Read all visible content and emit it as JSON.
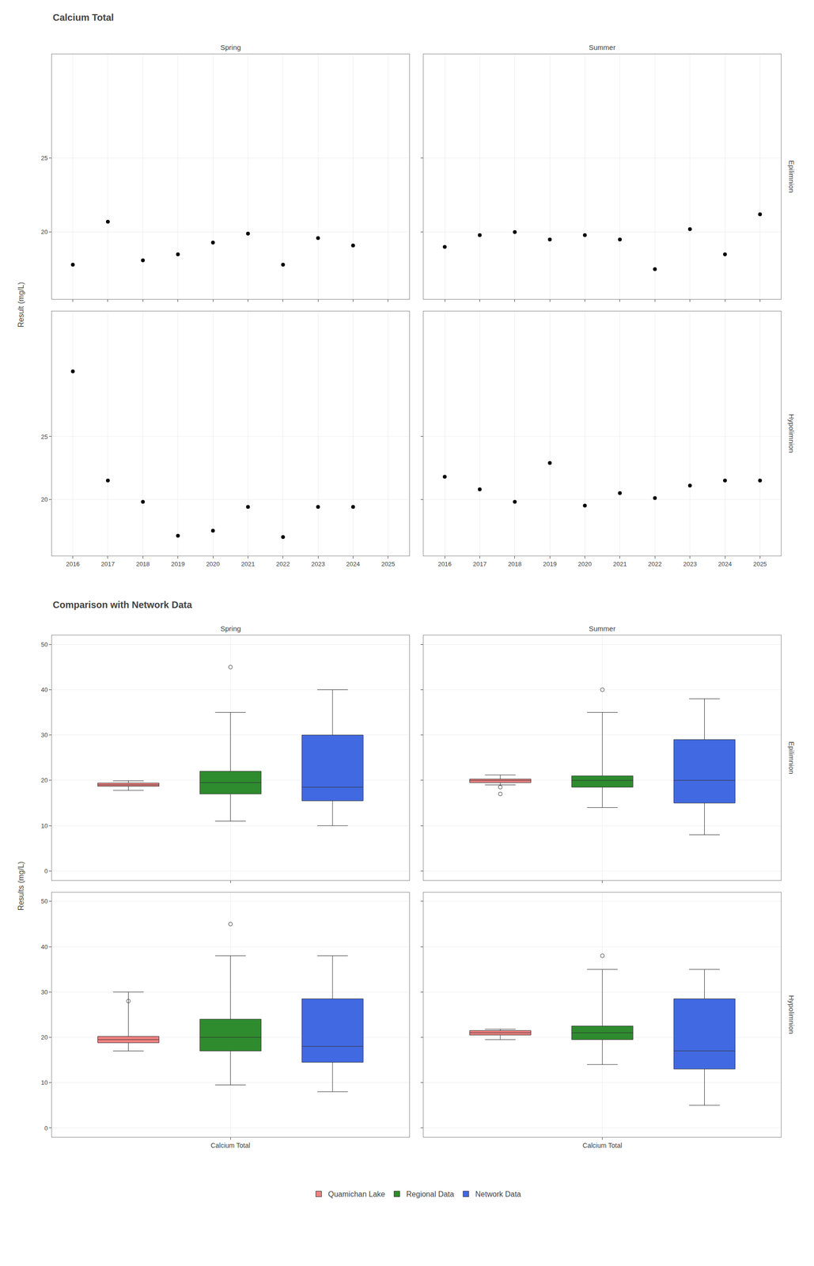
{
  "chart_data": [
    {
      "type": "scatter",
      "title": "Calcium Total",
      "ylabel": "Result (mg/L)",
      "columns": [
        "Spring",
        "Summer"
      ],
      "rows": [
        "Epilimnion",
        "Hypolimnion"
      ],
      "color": "#000000",
      "grid": true,
      "xlim": [
        2015.4,
        2025.6
      ],
      "xticks": [
        2016,
        2017,
        2018,
        2019,
        2020,
        2021,
        2022,
        2023,
        2024,
        2025
      ],
      "panels": [
        {
          "column": "Spring",
          "row": "Epilimnion",
          "tick_labels": "y",
          "x": [
            2016,
            2017,
            2018,
            2019,
            2020,
            2021,
            2022,
            2023,
            2024
          ],
          "y": [
            17.8,
            20.7,
            18.1,
            18.5,
            19.3,
            19.9,
            17.8,
            19.6,
            19.1
          ],
          "ylim": [
            15.5,
            32
          ],
          "yticks": [
            20,
            25
          ]
        },
        {
          "column": "Summer",
          "row": "Epilimnion",
          "tick_labels": false,
          "x": [
            2016,
            2017,
            2018,
            2019,
            2020,
            2021,
            2022,
            2023,
            2024,
            2025
          ],
          "y": [
            19.0,
            19.8,
            20.0,
            19.5,
            19.8,
            19.5,
            17.5,
            20.2,
            18.5,
            21.2
          ],
          "ylim": [
            15.5,
            32
          ],
          "yticks": [
            20,
            25
          ]
        },
        {
          "column": "Spring",
          "row": "Hypolimnion",
          "x": [
            2016,
            2017,
            2018,
            2019,
            2020,
            2021,
            2022,
            2023,
            2024
          ],
          "y": [
            30.2,
            21.5,
            19.8,
            17.1,
            17.5,
            19.4,
            17.0,
            19.4,
            19.4
          ],
          "ylim": [
            15.5,
            35
          ],
          "yticks": [
            20,
            25
          ]
        },
        {
          "column": "Summer",
          "row": "Hypolimnion",
          "tick_labels": "x",
          "x": [
            2016,
            2017,
            2018,
            2019,
            2020,
            2021,
            2022,
            2023,
            2024,
            2025
          ],
          "y": [
            21.8,
            20.8,
            19.8,
            22.9,
            19.5,
            20.5,
            20.1,
            21.1,
            21.5,
            21.5
          ],
          "ylim": [
            15.5,
            35
          ],
          "yticks": [
            20,
            25
          ]
        }
      ]
    },
    {
      "type": "box",
      "title": "Comparison with Network Data",
      "ylabel": "Results (mg/L)",
      "columns": [
        "Spring",
        "Summer"
      ],
      "rows": [
        "Epilimnion",
        "Hypolimnion"
      ],
      "categories": [
        null,
        "Calcium Total",
        null
      ],
      "ylim": [
        -2,
        52
      ],
      "yticks": [
        0,
        10,
        20,
        30,
        40,
        50
      ],
      "grid": true,
      "legend": "bottom",
      "panels": [
        {
          "column": "Spring",
          "row": "Epilimnion",
          "tick_labels": "y",
          "series": [
            {
              "name": "Quamichan Lake",
              "color": "#F08080",
              "median": 19.0,
              "q1": 18.7,
              "q3": 19.4,
              "whislo": 17.8,
              "whishi": 19.9,
              "fliers": []
            },
            {
              "name": "Regional Data",
              "color": "#2E8B2E",
              "median": 19.5,
              "q1": 17.0,
              "q3": 22.0,
              "whislo": 11.0,
              "whishi": 35.0,
              "fliers": [
                45.0
              ]
            },
            {
              "name": "Network Data",
              "color": "#4169E1",
              "median": 18.5,
              "q1": 15.5,
              "q3": 30.0,
              "whislo": 10.0,
              "whishi": 40.0,
              "fliers": []
            }
          ]
        },
        {
          "column": "Summer",
          "row": "Epilimnion",
          "tick_labels": false,
          "series": [
            {
              "name": "Quamichan Lake",
              "color": "#F08080",
              "median": 20.0,
              "q1": 19.5,
              "q3": 20.3,
              "whislo": 19.0,
              "whishi": 21.2,
              "fliers": [
                17.0,
                18.5
              ]
            },
            {
              "name": "Regional Data",
              "color": "#2E8B2E",
              "median": 20.0,
              "q1": 18.5,
              "q3": 21.0,
              "whislo": 14.0,
              "whishi": 35.0,
              "fliers": [
                40.0
              ]
            },
            {
              "name": "Network Data",
              "color": "#4169E1",
              "median": 20.0,
              "q1": 15.0,
              "q3": 29.0,
              "whislo": 8.0,
              "whishi": 38.0,
              "fliers": []
            }
          ]
        },
        {
          "column": "Spring",
          "row": "Hypolimnion",
          "series": [
            {
              "name": "Quamichan Lake",
              "color": "#F08080",
              "median": 19.5,
              "q1": 18.8,
              "q3": 20.2,
              "whislo": 17.0,
              "whishi": 30.0,
              "fliers": [
                28.0
              ]
            },
            {
              "name": "Regional Data",
              "color": "#2E8B2E",
              "median": 20.0,
              "q1": 17.0,
              "q3": 24.0,
              "whislo": 9.5,
              "whishi": 38.0,
              "fliers": [
                45.0
              ]
            },
            {
              "name": "Network Data",
              "color": "#4169E1",
              "median": 18.0,
              "q1": 14.5,
              "q3": 28.5,
              "whislo": 8.0,
              "whishi": 38.0,
              "fliers": []
            }
          ]
        },
        {
          "column": "Summer",
          "row": "Hypolimnion",
          "tick_labels": "x",
          "series": [
            {
              "name": "Quamichan Lake",
              "color": "#F08080",
              "median": 21.0,
              "q1": 20.5,
              "q3": 21.5,
              "whislo": 19.5,
              "whishi": 21.8,
              "fliers": []
            },
            {
              "name": "Regional Data",
              "color": "#2E8B2E",
              "median": 21.0,
              "q1": 19.5,
              "q3": 22.5,
              "whislo": 14.0,
              "whishi": 35.0,
              "fliers": [
                38.0
              ]
            },
            {
              "name": "Network Data",
              "color": "#4169E1",
              "median": 17.0,
              "q1": 13.0,
              "q3": 28.5,
              "whislo": 5.0,
              "whishi": 35.0,
              "fliers": []
            }
          ]
        }
      ]
    }
  ]
}
